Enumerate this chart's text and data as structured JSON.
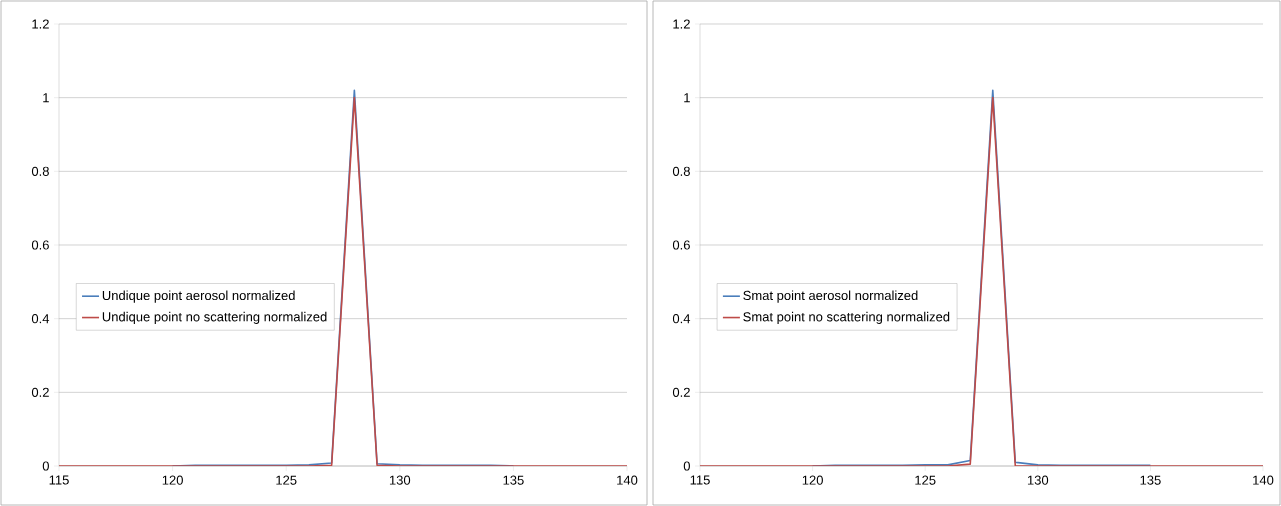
{
  "chart_data": [
    {
      "type": "line",
      "x": [
        115,
        116,
        117,
        118,
        119,
        120,
        121,
        122,
        123,
        124,
        125,
        126,
        127,
        128,
        129,
        130,
        131,
        132,
        133,
        134,
        135,
        136,
        137,
        138,
        139,
        140
      ],
      "xlim": [
        115,
        140
      ],
      "xticks": [
        115,
        120,
        125,
        130,
        135,
        140
      ],
      "ylim": [
        0,
        1.2
      ],
      "yticks": [
        0,
        0.2,
        0.4,
        0.6,
        0.8,
        1,
        1.2
      ],
      "grid": "y",
      "legend": "left",
      "marker": "none",
      "series": [
        {
          "name": "Undique point aerosol normalized",
          "color": "#4a7ebb",
          "values": [
            null,
            null,
            null,
            null,
            null,
            0,
            0.002,
            0.002,
            0.002,
            0.002,
            0.002,
            0.003,
            0.008,
            1.02,
            0.006,
            0.003,
            0.002,
            0.002,
            0.002,
            0.002,
            0,
            null,
            null,
            null,
            null,
            null
          ]
        },
        {
          "name": "Undique point no scattering normalized",
          "color": "#be4b48",
          "values": [
            0,
            0,
            0,
            0,
            0,
            0,
            0,
            0,
            0,
            0,
            0,
            0,
            0.002,
            1.0,
            0.002,
            0,
            0,
            0,
            0,
            0,
            0,
            0,
            0,
            0,
            0,
            0
          ]
        }
      ]
    },
    {
      "type": "line",
      "x": [
        115,
        116,
        117,
        118,
        119,
        120,
        121,
        122,
        123,
        124,
        125,
        126,
        127,
        128,
        129,
        130,
        131,
        132,
        133,
        134,
        135,
        136,
        137,
        138,
        139,
        140
      ],
      "xlim": [
        115,
        140
      ],
      "xticks": [
        115,
        120,
        125,
        130,
        135,
        140
      ],
      "ylim": [
        0,
        1.2
      ],
      "yticks": [
        0,
        0.2,
        0.4,
        0.6,
        0.8,
        1,
        1.2
      ],
      "grid": "y",
      "legend": "left",
      "marker": "none",
      "series": [
        {
          "name": "Smat point aerosol normalized",
          "color": "#4a7ebb",
          "values": [
            null,
            null,
            null,
            null,
            null,
            0,
            0.002,
            0.002,
            0.002,
            0.002,
            0.003,
            0.003,
            0.015,
            1.02,
            0.01,
            0.003,
            0.002,
            0.002,
            0.002,
            0.002,
            0.002,
            null,
            null,
            null,
            null,
            null
          ]
        },
        {
          "name": "Smat point no scattering normalized",
          "color": "#be4b48",
          "values": [
            0,
            0,
            0,
            0,
            0,
            0,
            0,
            0,
            0,
            0,
            0,
            0,
            0.005,
            1.0,
            0,
            0,
            0,
            0,
            0,
            0,
            0,
            0,
            0,
            0,
            0,
            0
          ]
        }
      ]
    }
  ]
}
